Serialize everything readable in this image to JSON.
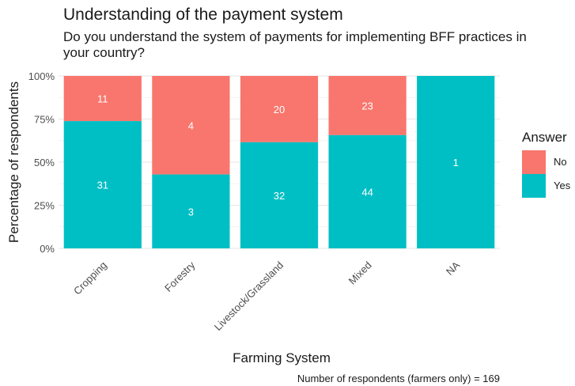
{
  "chart_data": {
    "type": "bar",
    "stacked": "percent",
    "title": "Understanding of the payment system",
    "subtitle": "Do you understand the system of payments for implementing BFF practices in your country?",
    "xlabel": "Farming System",
    "ylabel": "Percentage of respondents",
    "caption": "Number of respondents (farmers only) = 169",
    "categories": [
      "Cropping",
      "Forestry",
      "Livestock/Grassland",
      "Mixed",
      "NA"
    ],
    "ylim": [
      0,
      1
    ],
    "yticks": [
      {
        "value": 0,
        "label": "0%"
      },
      {
        "value": 0.25,
        "label": "25%"
      },
      {
        "value": 0.5,
        "label": "50%"
      },
      {
        "value": 0.75,
        "label": "75%"
      },
      {
        "value": 1,
        "label": "100%"
      }
    ],
    "series": [
      {
        "name": "Yes",
        "color": "#00BFC4",
        "values": [
          31,
          3,
          32,
          44,
          1
        ]
      },
      {
        "name": "No",
        "color": "#F8766D",
        "values": [
          11,
          4,
          20,
          23,
          0
        ]
      }
    ],
    "legend": {
      "title": "Answer",
      "position": "right",
      "entries": [
        "No",
        "Yes"
      ]
    },
    "grid": true
  }
}
